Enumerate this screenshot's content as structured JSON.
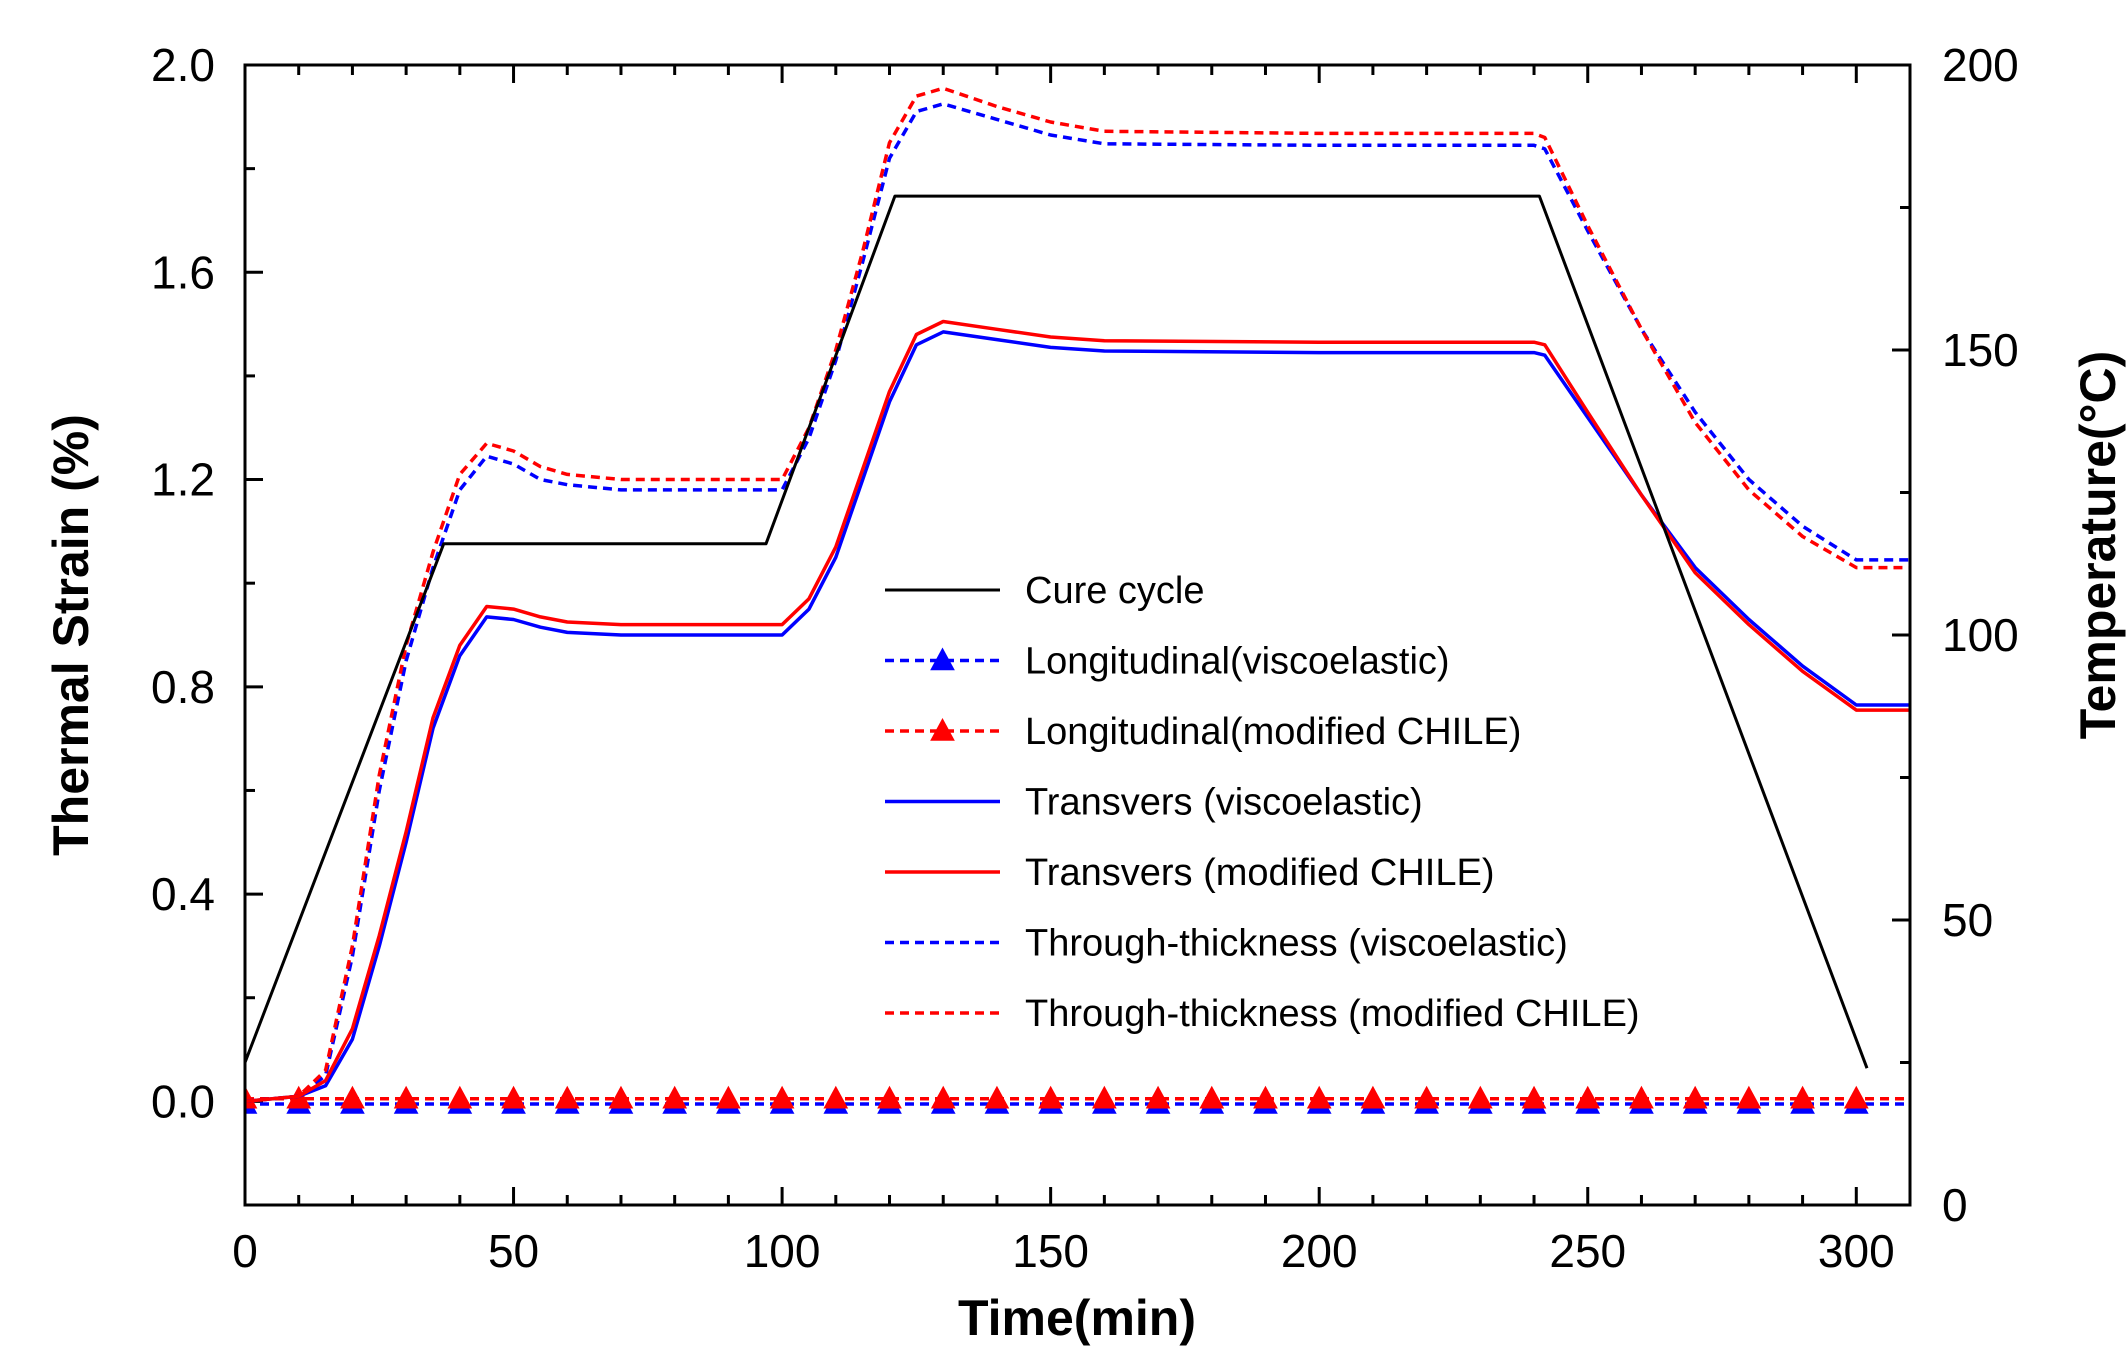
{
  "chart_data": {
    "type": "line",
    "xlabel": "Time(min)",
    "ylabel": "Thermal Strain (%)",
    "y2label": "Temperature(°C)",
    "xlim": [
      0,
      310
    ],
    "ylim": [
      -0.2,
      2.0
    ],
    "y2lim": [
      0,
      200
    ],
    "x_ticks": [
      0,
      50,
      100,
      150,
      200,
      250,
      300
    ],
    "x_tick_labels": [
      "0",
      "50",
      "100",
      "150",
      "200",
      "250",
      "300"
    ],
    "y_ticks": [
      0.0,
      0.4,
      0.8,
      1.2,
      1.6,
      2.0
    ],
    "y_tick_labels": [
      "0.0",
      "0.4",
      "0.8",
      "1.2",
      "1.6",
      "2.0"
    ],
    "y2_ticks": [
      0,
      50,
      100,
      150,
      200
    ],
    "y2_tick_labels": [
      "0",
      "50",
      "100",
      "150",
      "200"
    ],
    "legend_position": "center-right",
    "series": [
      {
        "name": "Cure cycle",
        "axis": "right",
        "color": "#000000",
        "style": "solid",
        "marker": "none",
        "x": [
          0,
          37,
          97,
          121,
          241,
          302
        ],
        "y": [
          25,
          116,
          116,
          177,
          177,
          24
        ]
      },
      {
        "name": "Longitudinal(viscoelastic)",
        "axis": "left",
        "color": "#0000ff",
        "style": "dotted",
        "marker": "triangle",
        "marker_y": -0.005,
        "marker_x": [
          0,
          10,
          20,
          30,
          40,
          50,
          60,
          70,
          80,
          90,
          100,
          110,
          120,
          130,
          140,
          150,
          160,
          170,
          180,
          190,
          200,
          210,
          220,
          230,
          240,
          250,
          260,
          270,
          280,
          290,
          300
        ],
        "x": [
          0,
          310
        ],
        "y": [
          -0.005,
          -0.005
        ]
      },
      {
        "name": "Longitudinal(modified CHILE)",
        "axis": "left",
        "color": "#ff0000",
        "style": "dotted",
        "marker": "triangle",
        "marker_y": 0.005,
        "marker_x": [
          0,
          10,
          20,
          30,
          40,
          50,
          60,
          70,
          80,
          90,
          100,
          110,
          120,
          130,
          140,
          150,
          160,
          170,
          180,
          190,
          200,
          210,
          220,
          230,
          240,
          250,
          260,
          270,
          280,
          290,
          300
        ],
        "x": [
          0,
          310
        ],
        "y": [
          0.005,
          0.005
        ]
      },
      {
        "name": "Transvers (viscoelastic)",
        "axis": "left",
        "color": "#0000ff",
        "style": "solid",
        "marker": "none",
        "x": [
          0,
          10,
          15,
          20,
          25,
          30,
          35,
          40,
          45,
          50,
          55,
          60,
          70,
          80,
          90,
          100,
          105,
          110,
          115,
          120,
          125,
          130,
          140,
          150,
          160,
          200,
          240,
          242,
          250,
          260,
          270,
          280,
          290,
          300,
          310
        ],
        "y": [
          0.0,
          0.01,
          0.03,
          0.12,
          0.3,
          0.5,
          0.72,
          0.86,
          0.935,
          0.93,
          0.915,
          0.905,
          0.9,
          0.9,
          0.9,
          0.9,
          0.95,
          1.05,
          1.2,
          1.35,
          1.46,
          1.485,
          1.47,
          1.455,
          1.448,
          1.445,
          1.445,
          1.44,
          1.32,
          1.17,
          1.03,
          0.93,
          0.84,
          0.765,
          0.765
        ]
      },
      {
        "name": "Transvers (modified CHILE)",
        "axis": "left",
        "color": "#ff0000",
        "style": "solid",
        "marker": "none",
        "x": [
          0,
          10,
          15,
          20,
          25,
          30,
          35,
          40,
          45,
          50,
          55,
          60,
          70,
          80,
          90,
          100,
          105,
          110,
          115,
          120,
          125,
          130,
          140,
          150,
          160,
          200,
          240,
          242,
          250,
          260,
          270,
          280,
          290,
          300,
          310
        ],
        "y": [
          0.0,
          0.01,
          0.04,
          0.14,
          0.32,
          0.52,
          0.74,
          0.88,
          0.955,
          0.95,
          0.935,
          0.925,
          0.92,
          0.92,
          0.92,
          0.92,
          0.97,
          1.07,
          1.22,
          1.37,
          1.48,
          1.505,
          1.49,
          1.475,
          1.468,
          1.465,
          1.465,
          1.46,
          1.33,
          1.17,
          1.02,
          0.92,
          0.83,
          0.755,
          0.755
        ]
      },
      {
        "name": "Through-thickness (viscoelastic)",
        "axis": "left",
        "color": "#0000ff",
        "style": "dotted",
        "marker": "none",
        "x": [
          0,
          10,
          15,
          20,
          25,
          30,
          35,
          40,
          45,
          50,
          55,
          60,
          70,
          80,
          90,
          100,
          105,
          110,
          115,
          120,
          125,
          130,
          140,
          150,
          160,
          200,
          240,
          242,
          250,
          260,
          270,
          280,
          290,
          300,
          310
        ],
        "y": [
          0.0,
          0.01,
          0.05,
          0.28,
          0.6,
          0.85,
          1.03,
          1.18,
          1.245,
          1.23,
          1.2,
          1.19,
          1.18,
          1.18,
          1.18,
          1.18,
          1.28,
          1.43,
          1.62,
          1.82,
          1.91,
          1.925,
          1.895,
          1.865,
          1.848,
          1.845,
          1.845,
          1.838,
          1.68,
          1.49,
          1.33,
          1.2,
          1.11,
          1.045,
          1.045
        ]
      },
      {
        "name": "Through-thickness (modified CHILE)",
        "axis": "left",
        "color": "#ff0000",
        "style": "dotted",
        "marker": "none",
        "x": [
          0,
          10,
          15,
          20,
          25,
          30,
          35,
          40,
          45,
          50,
          55,
          60,
          70,
          80,
          90,
          100,
          105,
          110,
          115,
          120,
          125,
          130,
          140,
          150,
          160,
          200,
          240,
          242,
          250,
          260,
          270,
          280,
          290,
          300,
          310
        ],
        "y": [
          0.0,
          0.01,
          0.06,
          0.3,
          0.63,
          0.88,
          1.06,
          1.21,
          1.27,
          1.255,
          1.225,
          1.21,
          1.2,
          1.2,
          1.2,
          1.2,
          1.3,
          1.45,
          1.64,
          1.85,
          1.94,
          1.955,
          1.92,
          1.89,
          1.872,
          1.868,
          1.868,
          1.86,
          1.69,
          1.49,
          1.31,
          1.18,
          1.09,
          1.03,
          1.03
        ]
      }
    ]
  }
}
